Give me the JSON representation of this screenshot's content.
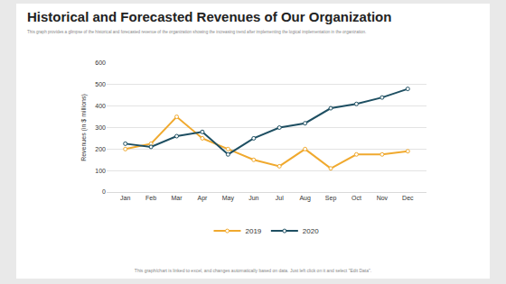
{
  "chart_data": {
    "type": "line",
    "title": "Historical and Forecasted Revenues of Our Organization",
    "subtitle": "This graph provides a glimpse of the historical and forecasted revenue of the organization showing the increasing trend after implementing the logical implementation in the organization.",
    "annotations": [
      "This graph/chart is linked to excel, and changes automatically based on data. Just left click on it and select \"Edit Data\"."
    ],
    "y_label": "Revenues (in $ millions)",
    "categories": [
      "Jan",
      "Feb",
      "Mar",
      "Apr",
      "May",
      "Jun",
      "Jul",
      "Aug",
      "Sep",
      "Oct",
      "Nov",
      "Dec"
    ],
    "series": [
      {
        "name": "2019",
        "color": "#f0a92e",
        "values": [
          200,
          225,
          350,
          250,
          200,
          150,
          120,
          200,
          110,
          175,
          175,
          190
        ]
      },
      {
        "name": "2020",
        "color": "#1e4f62",
        "values": [
          225,
          210,
          260,
          280,
          175,
          250,
          300,
          320,
          390,
          410,
          440,
          480
        ]
      }
    ],
    "ylim": [
      0,
      600
    ],
    "yticks": [
      0,
      100,
      200,
      300,
      400,
      500,
      600
    ],
    "grid": true,
    "legend": "bottom",
    "marker": "circle"
  }
}
